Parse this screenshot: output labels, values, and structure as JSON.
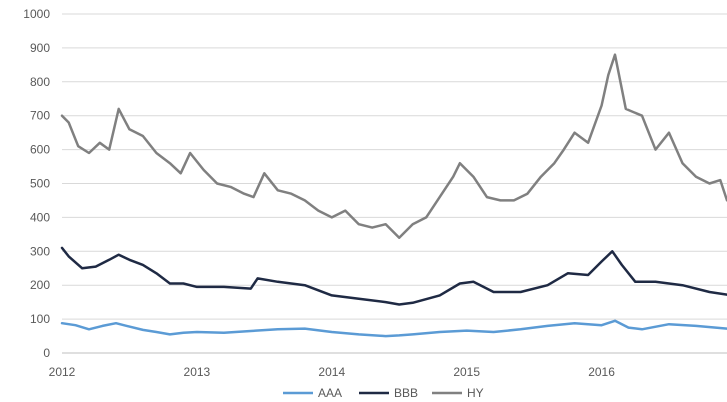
{
  "chart_data": {
    "type": "line",
    "title": "",
    "xlabel": "",
    "ylabel": "",
    "xlim": [
      2012.0,
      2016.93
    ],
    "ylim": [
      0,
      1000
    ],
    "y_ticks": [
      0,
      100,
      200,
      300,
      400,
      500,
      600,
      700,
      800,
      900,
      1000
    ],
    "x_ticks": [
      2012,
      2013,
      2014,
      2015,
      2016
    ],
    "x_tick_labels": [
      "2012",
      "2013",
      "2014",
      "2015",
      "2016"
    ],
    "y_tick_labels": [
      "0",
      "100",
      "200",
      "300",
      "400",
      "500",
      "600",
      "700",
      "800",
      "900",
      "1000"
    ],
    "grid": "horizontal",
    "legend_position": "bottom",
    "series": [
      {
        "name": "AAA",
        "color": "#5B9BD5",
        "x": [
          2012.0,
          2012.1,
          2012.2,
          2012.3,
          2012.4,
          2012.5,
          2012.6,
          2012.7,
          2012.8,
          2012.9,
          2013.0,
          2013.2,
          2013.4,
          2013.6,
          2013.8,
          2014.0,
          2014.2,
          2014.4,
          2014.5,
          2014.6,
          2014.8,
          2015.0,
          2015.2,
          2015.4,
          2015.6,
          2015.8,
          2016.0,
          2016.1,
          2016.2,
          2016.3,
          2016.5,
          2016.7,
          2016.93
        ],
        "y": [
          88,
          82,
          70,
          80,
          88,
          78,
          68,
          62,
          55,
          60,
          62,
          60,
          65,
          70,
          72,
          62,
          55,
          50,
          52,
          55,
          62,
          66,
          62,
          70,
          80,
          88,
          82,
          95,
          75,
          70,
          85,
          80,
          72
        ]
      },
      {
        "name": "BBB",
        "color": "#1F2A44",
        "x": [
          2012.0,
          2012.05,
          2012.15,
          2012.25,
          2012.35,
          2012.42,
          2012.5,
          2012.6,
          2012.7,
          2012.8,
          2012.9,
          2013.0,
          2013.2,
          2013.4,
          2013.45,
          2013.6,
          2013.8,
          2014.0,
          2014.2,
          2014.4,
          2014.5,
          2014.6,
          2014.8,
          2014.95,
          2015.05,
          2015.2,
          2015.4,
          2015.6,
          2015.75,
          2015.9,
          2016.0,
          2016.08,
          2016.15,
          2016.25,
          2016.4,
          2016.6,
          2016.8,
          2016.93
        ],
        "y": [
          310,
          285,
          250,
          255,
          275,
          290,
          275,
          260,
          235,
          205,
          205,
          195,
          195,
          190,
          220,
          210,
          200,
          170,
          160,
          150,
          143,
          148,
          170,
          205,
          210,
          180,
          180,
          200,
          235,
          230,
          270,
          300,
          260,
          210,
          210,
          200,
          180,
          172
        ]
      },
      {
        "name": "HY",
        "color": "#808080",
        "x": [
          2012.0,
          2012.05,
          2012.12,
          2012.2,
          2012.28,
          2012.35,
          2012.42,
          2012.5,
          2012.6,
          2012.7,
          2012.8,
          2012.88,
          2012.95,
          2013.05,
          2013.15,
          2013.25,
          2013.35,
          2013.42,
          2013.5,
          2013.6,
          2013.7,
          2013.8,
          2013.9,
          2014.0,
          2014.1,
          2014.2,
          2014.3,
          2014.4,
          2014.5,
          2014.6,
          2014.7,
          2014.8,
          2014.9,
          2014.95,
          2015.05,
          2015.15,
          2015.25,
          2015.35,
          2015.45,
          2015.55,
          2015.65,
          2015.72,
          2015.8,
          2015.9,
          2016.0,
          2016.05,
          2016.1,
          2016.18,
          2016.3,
          2016.4,
          2016.5,
          2016.6,
          2016.7,
          2016.8,
          2016.88,
          2016.93
        ],
        "y": [
          700,
          680,
          610,
          590,
          620,
          600,
          720,
          660,
          640,
          590,
          560,
          530,
          590,
          540,
          500,
          490,
          470,
          460,
          530,
          480,
          470,
          450,
          420,
          400,
          420,
          380,
          370,
          380,
          340,
          380,
          400,
          460,
          520,
          560,
          520,
          460,
          450,
          450,
          470,
          520,
          560,
          600,
          650,
          620,
          730,
          820,
          880,
          720,
          700,
          600,
          650,
          560,
          520,
          500,
          510,
          450
        ]
      }
    ]
  }
}
